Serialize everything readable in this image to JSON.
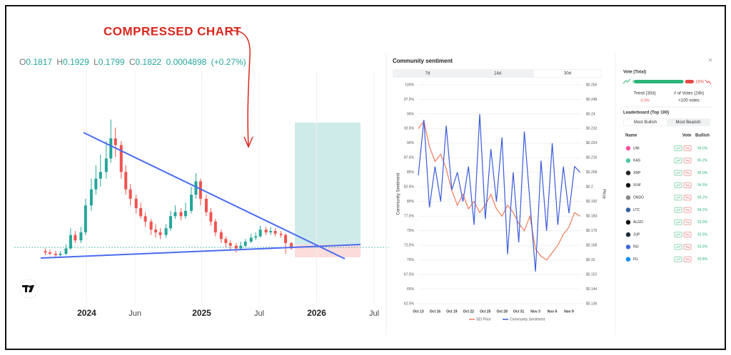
{
  "annotation": "COMPRESSED CHART",
  "ohlc": {
    "open_label": "O",
    "open": 0.1817,
    "high_label": "H",
    "high": 0.1929,
    "low_label": "L",
    "low": 0.1799,
    "close_label": "C",
    "close": 0.1822,
    "change": 0.0004898,
    "change_pct": "(+0.27%)"
  },
  "chart_data": [
    {
      "type": "candlestick",
      "colors": {
        "up": "#26a69a",
        "down": "#ef5350"
      },
      "xlim": [
        2023.37,
        2026.63
      ],
      "ylim": [
        -0.2,
        1.5
      ],
      "xticks": [
        2024,
        {
          "value": 2024.42,
          "label": "Jun"
        },
        2025,
        {
          "value": 2025.5,
          "label": "Jul"
        },
        2026,
        {
          "value": 2026.5,
          "label": "Jul"
        }
      ],
      "x": [
        2023.64,
        2023.68,
        2023.73,
        2023.77,
        2023.82,
        2023.86,
        2023.9,
        2023.95,
        2023.99,
        2024.04,
        2024.08,
        2024.12,
        2024.17,
        2024.21,
        2024.25,
        2024.3,
        2024.34,
        2024.38,
        2024.43,
        2024.47,
        2024.51,
        2024.56,
        2024.6,
        2024.64,
        2024.69,
        2024.73,
        2024.77,
        2024.82,
        2024.86,
        2024.91,
        2024.95,
        2024.99,
        2025.04,
        2025.08,
        2025.12,
        2025.17,
        2025.21,
        2025.25,
        2025.3,
        2025.34,
        2025.38,
        2025.43,
        2025.47,
        2025.51,
        2025.56,
        2025.6,
        2025.64,
        2025.69,
        2025.73,
        2025.78
      ],
      "open": [
        0.16,
        0.15,
        0.14,
        0.13,
        0.14,
        0.18,
        0.28,
        0.24,
        0.3,
        0.5,
        0.62,
        0.7,
        0.75,
        0.85,
        1.0,
        0.95,
        0.75,
        0.62,
        0.55,
        0.48,
        0.42,
        0.38,
        0.32,
        0.3,
        0.28,
        0.33,
        0.42,
        0.45,
        0.42,
        0.46,
        0.58,
        0.68,
        0.55,
        0.45,
        0.38,
        0.3,
        0.25,
        0.22,
        0.2,
        0.18,
        0.2,
        0.23,
        0.26,
        0.27,
        0.32,
        0.3,
        0.31,
        0.29,
        0.28,
        0.22
      ],
      "high": [
        0.18,
        0.17,
        0.16,
        0.16,
        0.21,
        0.33,
        0.31,
        0.34,
        0.55,
        0.7,
        0.8,
        0.88,
        0.98,
        1.14,
        1.08,
        0.98,
        0.8,
        0.66,
        0.58,
        0.52,
        0.45,
        0.4,
        0.36,
        0.33,
        0.36,
        0.46,
        0.5,
        0.48,
        0.52,
        0.64,
        0.74,
        0.7,
        0.58,
        0.48,
        0.4,
        0.32,
        0.27,
        0.24,
        0.22,
        0.23,
        0.25,
        0.29,
        0.3,
        0.35,
        0.34,
        0.34,
        0.33,
        0.31,
        0.29,
        0.23
      ],
      "low": [
        0.13,
        0.13,
        0.12,
        0.12,
        0.13,
        0.17,
        0.22,
        0.22,
        0.28,
        0.46,
        0.58,
        0.64,
        0.7,
        0.82,
        0.86,
        0.7,
        0.58,
        0.5,
        0.44,
        0.4,
        0.34,
        0.28,
        0.26,
        0.25,
        0.26,
        0.31,
        0.4,
        0.39,
        0.4,
        0.44,
        0.55,
        0.5,
        0.42,
        0.35,
        0.27,
        0.22,
        0.19,
        0.17,
        0.15,
        0.17,
        0.19,
        0.22,
        0.24,
        0.26,
        0.28,
        0.28,
        0.27,
        0.26,
        0.14,
        0.17
      ],
      "close": [
        0.15,
        0.14,
        0.13,
        0.14,
        0.18,
        0.28,
        0.24,
        0.3,
        0.5,
        0.62,
        0.7,
        0.75,
        0.85,
        1.0,
        0.95,
        0.75,
        0.62,
        0.55,
        0.48,
        0.42,
        0.38,
        0.32,
        0.3,
        0.28,
        0.33,
        0.42,
        0.45,
        0.42,
        0.46,
        0.58,
        0.68,
        0.55,
        0.45,
        0.38,
        0.3,
        0.25,
        0.22,
        0.2,
        0.18,
        0.2,
        0.23,
        0.26,
        0.27,
        0.32,
        0.3,
        0.31,
        0.29,
        0.28,
        0.22,
        0.18
      ]
    },
    {
      "type": "line",
      "title": "Community sentiment",
      "tabs": [
        "7d",
        "14d",
        "30d"
      ],
      "ylabel": "Community Sentiment",
      "y2label": "Price",
      "grid": true,
      "categories": [
        "Oct 13",
        null,
        null,
        "Oct 16",
        null,
        null,
        "Oct 19",
        null,
        null,
        "Oct 22",
        null,
        null,
        "Oct 25",
        null,
        null,
        "Oct 28",
        null,
        null,
        "Oct 31",
        null,
        null,
        "Nov 3",
        null,
        null,
        "Nov 6",
        null,
        null,
        "Nov 9",
        null,
        null
      ],
      "ylim": [
        62.5,
        100
      ],
      "yticks": [
        {
          "value": 62.5,
          "label": "62.5%"
        },
        {
          "value": 65,
          "label": "65%"
        },
        {
          "value": 67.5,
          "label": "67.5%"
        },
        {
          "value": 70,
          "label": "70%"
        },
        {
          "value": 72.5,
          "label": "72.5%"
        },
        {
          "value": 75,
          "label": "75%"
        },
        {
          "value": 77.5,
          "label": "77.5%"
        },
        {
          "value": 80,
          "label": "80%"
        },
        {
          "value": 82.5,
          "label": "82.5%"
        },
        {
          "value": 85,
          "label": "85%"
        },
        {
          "value": 87.5,
          "label": "87.5%"
        },
        {
          "value": 90,
          "label": "90%"
        },
        {
          "value": 92.5,
          "label": "92.5%"
        },
        {
          "value": 95,
          "label": "95%"
        },
        {
          "value": 97.5,
          "label": "97.5%"
        },
        {
          "value": 100,
          "label": "100%"
        }
      ],
      "y2lim": [
        0.136,
        0.256
      ],
      "y2ticks": [
        {
          "value": 0.136,
          "label": "$0.136"
        },
        {
          "value": 0.144,
          "label": "$0.144"
        },
        {
          "value": 0.152,
          "label": "$0.152"
        },
        {
          "value": 0.16,
          "label": "$0.16"
        },
        {
          "value": 0.168,
          "label": "$0.168"
        },
        {
          "value": 0.176,
          "label": "$0.176"
        },
        {
          "value": 0.184,
          "label": "$0.184"
        },
        {
          "value": 0.192,
          "label": "$0.192"
        },
        {
          "value": 0.2,
          "label": "$0.2"
        },
        {
          "value": 0.208,
          "label": "$0.208"
        },
        {
          "value": 0.216,
          "label": "$0.216"
        },
        {
          "value": 0.224,
          "label": "$0.224"
        },
        {
          "value": 0.232,
          "label": "$0.232"
        },
        {
          "value": 0.24,
          "label": "$0.24"
        },
        {
          "value": 0.248,
          "label": "$0.248"
        },
        {
          "value": 0.256,
          "label": "$0.256"
        }
      ],
      "series": [
        {
          "name": "SEI Price",
          "color": "#f07a5a",
          "axis": "y2",
          "values": [
            0.232,
            0.236,
            0.222,
            0.214,
            0.218,
            0.21,
            0.198,
            0.19,
            0.196,
            0.188,
            0.192,
            0.186,
            0.19,
            0.196,
            0.188,
            0.184,
            0.19,
            0.186,
            0.18,
            0.176,
            0.184,
            0.166,
            0.162,
            0.16,
            0.164,
            0.168,
            0.174,
            0.178,
            0.186,
            0.184
          ]
        },
        {
          "name": "Community Sentiment",
          "color": "#3b5bdb",
          "values": [
            84.5,
            94,
            79,
            86,
            80,
            93,
            82,
            85,
            80,
            86,
            76,
            95,
            77,
            89,
            80,
            91,
            71,
            85,
            73,
            92,
            80,
            68,
            87,
            75,
            90,
            76,
            86,
            78,
            86,
            85
          ]
        }
      ]
    }
  ],
  "vote": {
    "title": "Vote (Total)",
    "bullish": {
      "value": 84,
      "label": "84%"
    },
    "bearish": {
      "value": 16,
      "label": "16%"
    },
    "trend_label": "Trend (30d)",
    "trend": "-0.3%",
    "votes_label": "# of Votes (24h)",
    "votes": "<100 votes"
  },
  "leaderboard": {
    "title": "Leaderboard (Top 100)",
    "tabs": [
      "Most Bullish",
      "Most Bearish"
    ],
    "columns": [
      "Name",
      "Vote",
      "Bullish"
    ],
    "rows": [
      [
        "UNI",
        "99.0%"
      ],
      [
        "KAS",
        "96.2%"
      ],
      [
        "XRP",
        "95.0%"
      ],
      [
        "XLM",
        "94.5%"
      ],
      [
        "ONDO",
        "94.2%"
      ],
      [
        "LTC",
        "94.2%"
      ],
      [
        "ALGO",
        "93.9%"
      ],
      [
        "JUP",
        "93.9%"
      ],
      [
        "INJ",
        "93.8%"
      ],
      [
        "FIL",
        "93.8%"
      ]
    ]
  }
}
